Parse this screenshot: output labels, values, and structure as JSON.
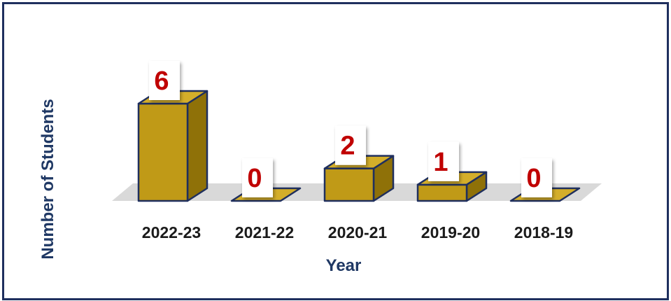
{
  "chart_data": {
    "type": "bar",
    "categories": [
      "2022-23",
      "2021-22",
      "2020-21",
      "2019-20",
      "2018-19"
    ],
    "values": [
      6,
      0,
      2,
      1,
      0
    ],
    "data_labels": [
      "6",
      "0",
      "2",
      "1",
      "0"
    ],
    "title": "",
    "xlabel": "Year",
    "ylabel": "Number of Students",
    "ylim": [
      0,
      6
    ],
    "grid": false,
    "legend": "none",
    "style": "3d-column"
  },
  "colors": {
    "bar_front": "#c09a17",
    "bar_side": "#8f7108",
    "bar_top": "#d4ae2a",
    "bar_outline": "#1f2f5e",
    "floor": "#d9d9d9",
    "data_label": "#c00000",
    "axis_text": "#1a1a1a",
    "axis_title": "#1f3864",
    "frame": "#1f2f5e"
  }
}
